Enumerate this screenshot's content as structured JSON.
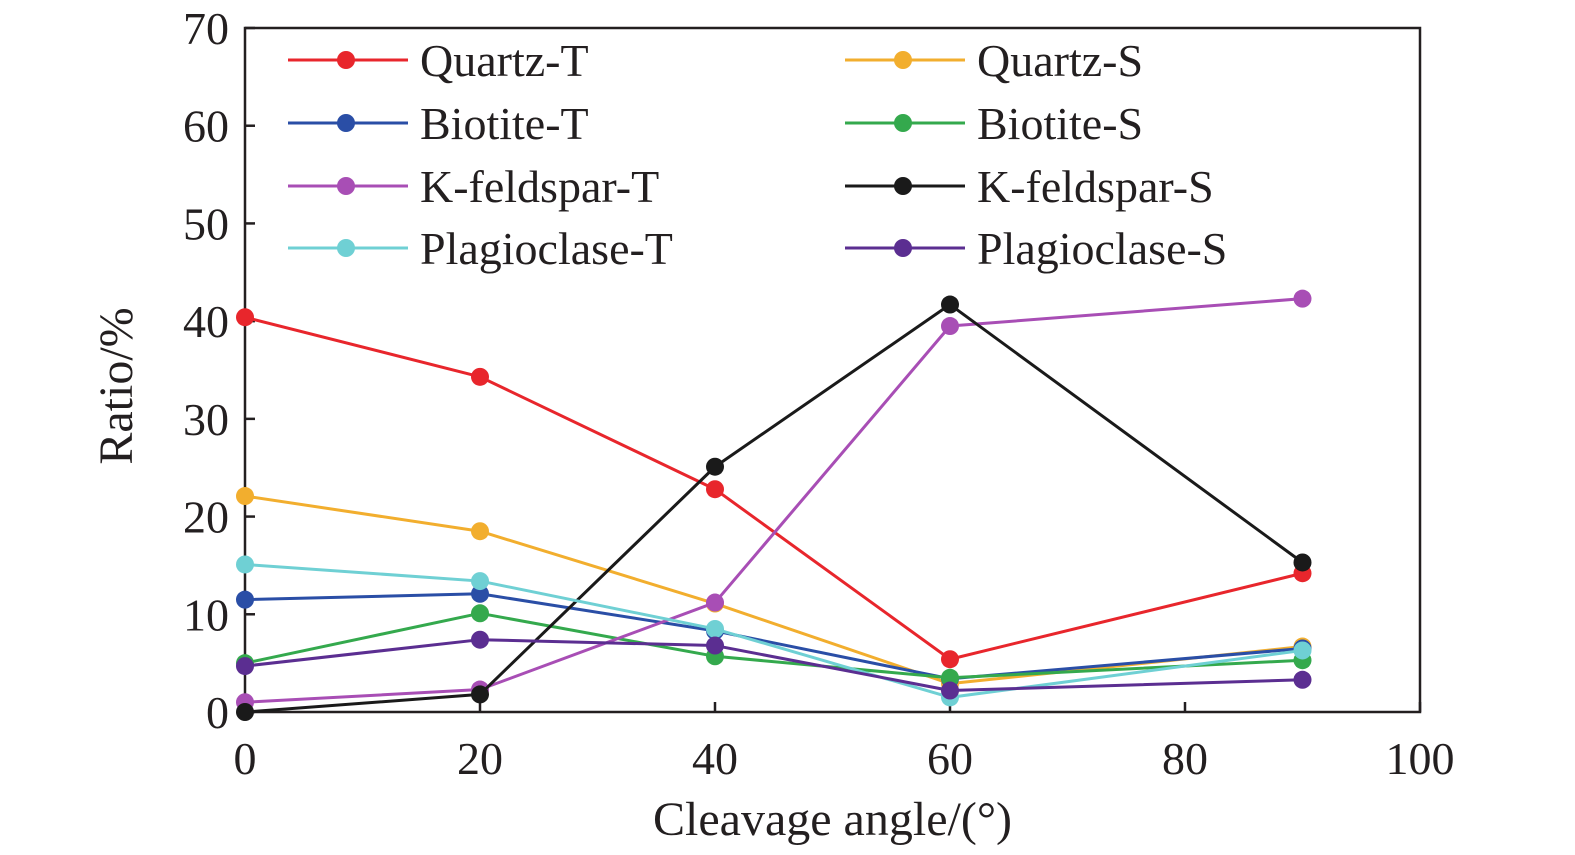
{
  "chart_data": {
    "type": "line",
    "title": "",
    "xlabel": "Cleavage angle/(°)",
    "ylabel": "Ratio/%",
    "xlim": [
      0,
      100
    ],
    "ylim": [
      0,
      70
    ],
    "xticks": [
      0,
      20,
      40,
      60,
      80,
      100
    ],
    "yticks": [
      0,
      10,
      20,
      30,
      40,
      50,
      60,
      70
    ],
    "grid": false,
    "legend_position": "top",
    "x": [
      0,
      20,
      40,
      60,
      90
    ],
    "series": [
      {
        "name": "Quartz-T",
        "color": "#e8262c",
        "values": [
          40.4,
          34.3,
          22.8,
          5.4,
          14.2
        ]
      },
      {
        "name": "Quartz-S",
        "color": "#f2ae2e",
        "values": [
          22.1,
          18.5,
          11.1,
          2.9,
          6.7
        ]
      },
      {
        "name": "Biotite-T",
        "color": "#2a4ea6",
        "values": [
          11.5,
          12.1,
          8.3,
          3.4,
          6.5
        ]
      },
      {
        "name": "Biotite-S",
        "color": "#34a94d",
        "values": [
          5.0,
          10.1,
          5.7,
          3.5,
          5.3
        ]
      },
      {
        "name": "K-feldspar-T",
        "color": "#a84eb5",
        "values": [
          1.0,
          2.3,
          11.2,
          39.5,
          42.3
        ]
      },
      {
        "name": "K-feldspar-S",
        "color": "#1a1a1a",
        "values": [
          0.0,
          1.8,
          25.1,
          41.7,
          15.3
        ]
      },
      {
        "name": "Plagioclase-T",
        "color": "#6fd0d4",
        "values": [
          15.1,
          13.4,
          8.5,
          1.5,
          6.3
        ]
      },
      {
        "name": "Plagioclase-S",
        "color": "#5b2e91",
        "values": [
          4.7,
          7.4,
          6.8,
          2.2,
          3.3
        ]
      }
    ]
  }
}
